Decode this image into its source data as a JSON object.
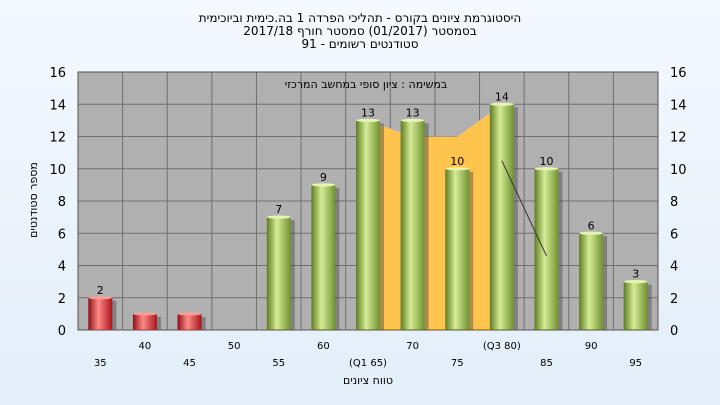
{
  "title_lines": [
    "היסטוגרמת ציונים בקורס - תהליכי הפרדה 1 בה.כימית וביוכימית",
    "בסמסטר  (01/2017)  סמסטר חורף  2017/18",
    "סטודנטים רשומים - 91"
  ],
  "chart_data": {
    "type": "bar",
    "ylabel": "מספר סטודנטים",
    "xlabel": "טווח ציונים",
    "annotation": "במשימה : ציון סופי במחשב המרכזי",
    "ylim": [
      0,
      16
    ],
    "y_ticks": [
      0,
      2,
      4,
      6,
      8,
      10,
      12,
      14,
      16
    ],
    "grid": true,
    "categories": [
      35,
      40,
      45,
      50,
      55,
      60,
      65,
      70,
      75,
      80,
      85,
      90,
      95
    ],
    "x_tick_labels": [
      "35",
      "40",
      "45",
      "50",
      "55",
      "60",
      "(Q1 65)",
      "70",
      "75",
      "(Q3 80)",
      "85",
      "90",
      "95"
    ],
    "values": [
      2,
      1,
      1,
      0,
      7,
      9,
      13,
      13,
      10,
      14,
      10,
      6,
      3
    ],
    "data_labels": [
      "2",
      "",
      "",
      "",
      "7",
      "9",
      "13",
      "13",
      "10",
      "14",
      "10",
      "6",
      "3"
    ],
    "failing_categories": [
      35,
      40,
      45
    ],
    "interquartile_band": {
      "from": 65,
      "to": 80,
      "values": [
        13,
        12,
        12,
        14
      ]
    },
    "trend_line": {
      "from": 80,
      "to": 85,
      "values": [
        10.5,
        4.6
      ]
    },
    "colors": {
      "fail_bar": "#cc1f28",
      "pass_bar": "#8db23e",
      "band": "#ffc44d",
      "plot_bg": "#b0b0b0",
      "grid": "#6f6f6f"
    }
  }
}
